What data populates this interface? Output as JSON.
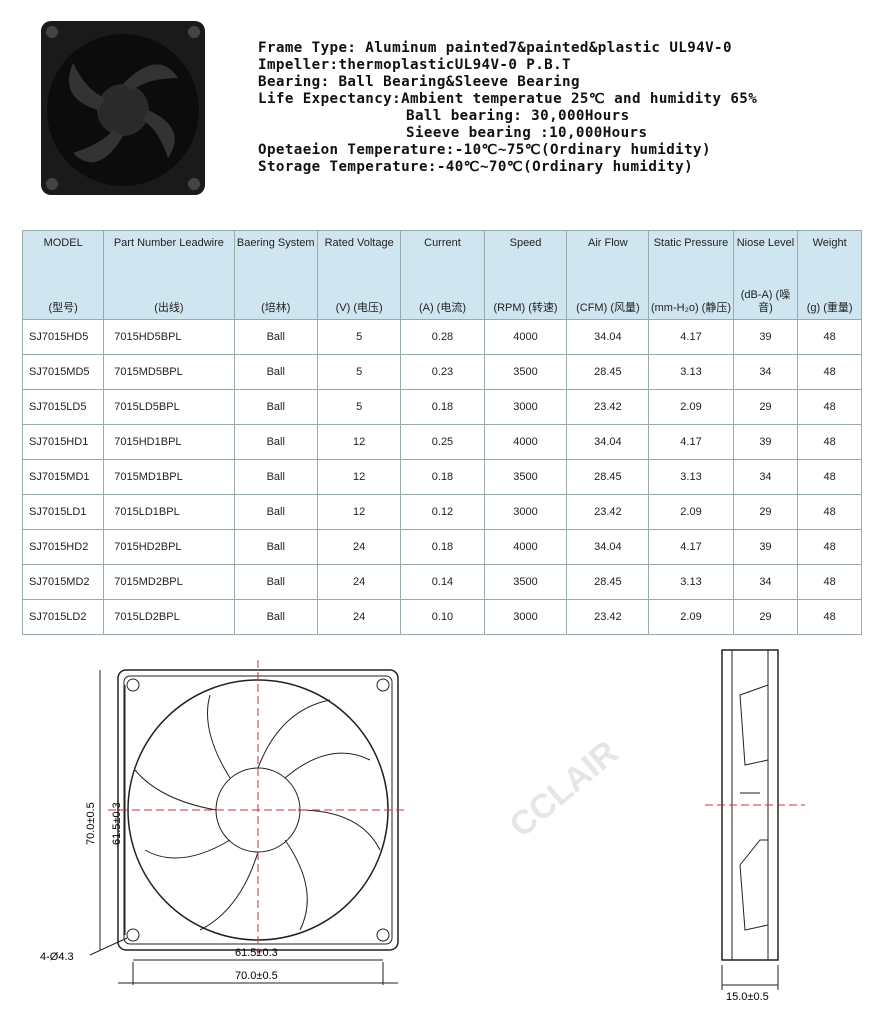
{
  "specs": [
    "Frame Type: Aluminum painted7&painted&plastic UL94V-0",
    "Impeller:thermoplasticUL94V-0 P.B.T",
    "Bearing: Ball Bearing&Sleeve Bearing",
    "Life Expectancy:Ambient temperatue 25℃ and humidity 65%",
    "                Ball bearing: 30,000Hours",
    "                Sieeve bearing :10,000Hours",
    "Opetaeion Temperature:-10℃~75℃(Ordinary humidity)",
    "Storage Temperature:-40℃~70℃(Ordinary humidity)"
  ],
  "table": {
    "headers": [
      {
        "label": "MODEL",
        "unit": "(型号)"
      },
      {
        "label": "Part Number Leadwire",
        "unit": "(出线)"
      },
      {
        "label": "Baering System",
        "unit": "(培林)"
      },
      {
        "label": "Rated Voltage",
        "unit": "(V) (电压)"
      },
      {
        "label": "Current",
        "unit": "(A) (电流)"
      },
      {
        "label": "Speed",
        "unit": "(RPM) (转速)"
      },
      {
        "label": "Air Flow",
        "unit": "(CFM) (风量)"
      },
      {
        "label": "Static Pressure",
        "unit": "(mm-H₂o) (静压)"
      },
      {
        "label": "Niose Level",
        "unit": "(dB-A) (噪音)"
      },
      {
        "label": "Weight",
        "unit": "(g) (重量)"
      }
    ],
    "rows": [
      [
        "SJ7015HD5",
        "7015HD5BPL",
        "Ball",
        "5",
        "0.28",
        "4000",
        "34.04",
        "4.17",
        "39",
        "48"
      ],
      [
        "SJ7015MD5",
        "7015MD5BPL",
        "Ball",
        "5",
        "0.23",
        "3500",
        "28.45",
        "3.13",
        "34",
        "48"
      ],
      [
        "SJ7015LD5",
        "7015LD5BPL",
        "Ball",
        "5",
        "0.18",
        "3000",
        "23.42",
        "2.09",
        "29",
        "48"
      ],
      [
        "SJ7015HD1",
        "7015HD1BPL",
        "Ball",
        "12",
        "0.25",
        "4000",
        "34.04",
        "4.17",
        "39",
        "48"
      ],
      [
        "SJ7015MD1",
        "7015MD1BPL",
        "Ball",
        "12",
        "0.18",
        "3500",
        "28.45",
        "3.13",
        "34",
        "48"
      ],
      [
        "SJ7015LD1",
        "7015LD1BPL",
        "Ball",
        "12",
        "0.12",
        "3000",
        "23.42",
        "2.09",
        "29",
        "48"
      ],
      [
        "SJ7015HD2",
        "7015HD2BPL",
        "Ball",
        "24",
        "0.18",
        "4000",
        "34.04",
        "4.17",
        "39",
        "48"
      ],
      [
        "SJ7015MD2",
        "7015MD2BPL",
        "Ball",
        "24",
        "0.14",
        "3500",
        "28.45",
        "3.13",
        "34",
        "48"
      ],
      [
        "SJ7015LD2",
        "7015LD2BPL",
        "Ball",
        "24",
        "0.10",
        "3000",
        "23.42",
        "2.09",
        "29",
        "48"
      ]
    ]
  },
  "drawing": {
    "dim_height_outer": "70.0±0.5",
    "dim_height_inner": "61.5±0.3",
    "dim_width_inner": "61.5±0.3",
    "dim_width_outer": "70.0±0.5",
    "hole": "4-Ø4.3",
    "thickness": "15.0±0.5"
  },
  "watermark": "CCLAIR",
  "colors": {
    "header_bg": "#cfe6f0",
    "centerline": "#d03030"
  }
}
